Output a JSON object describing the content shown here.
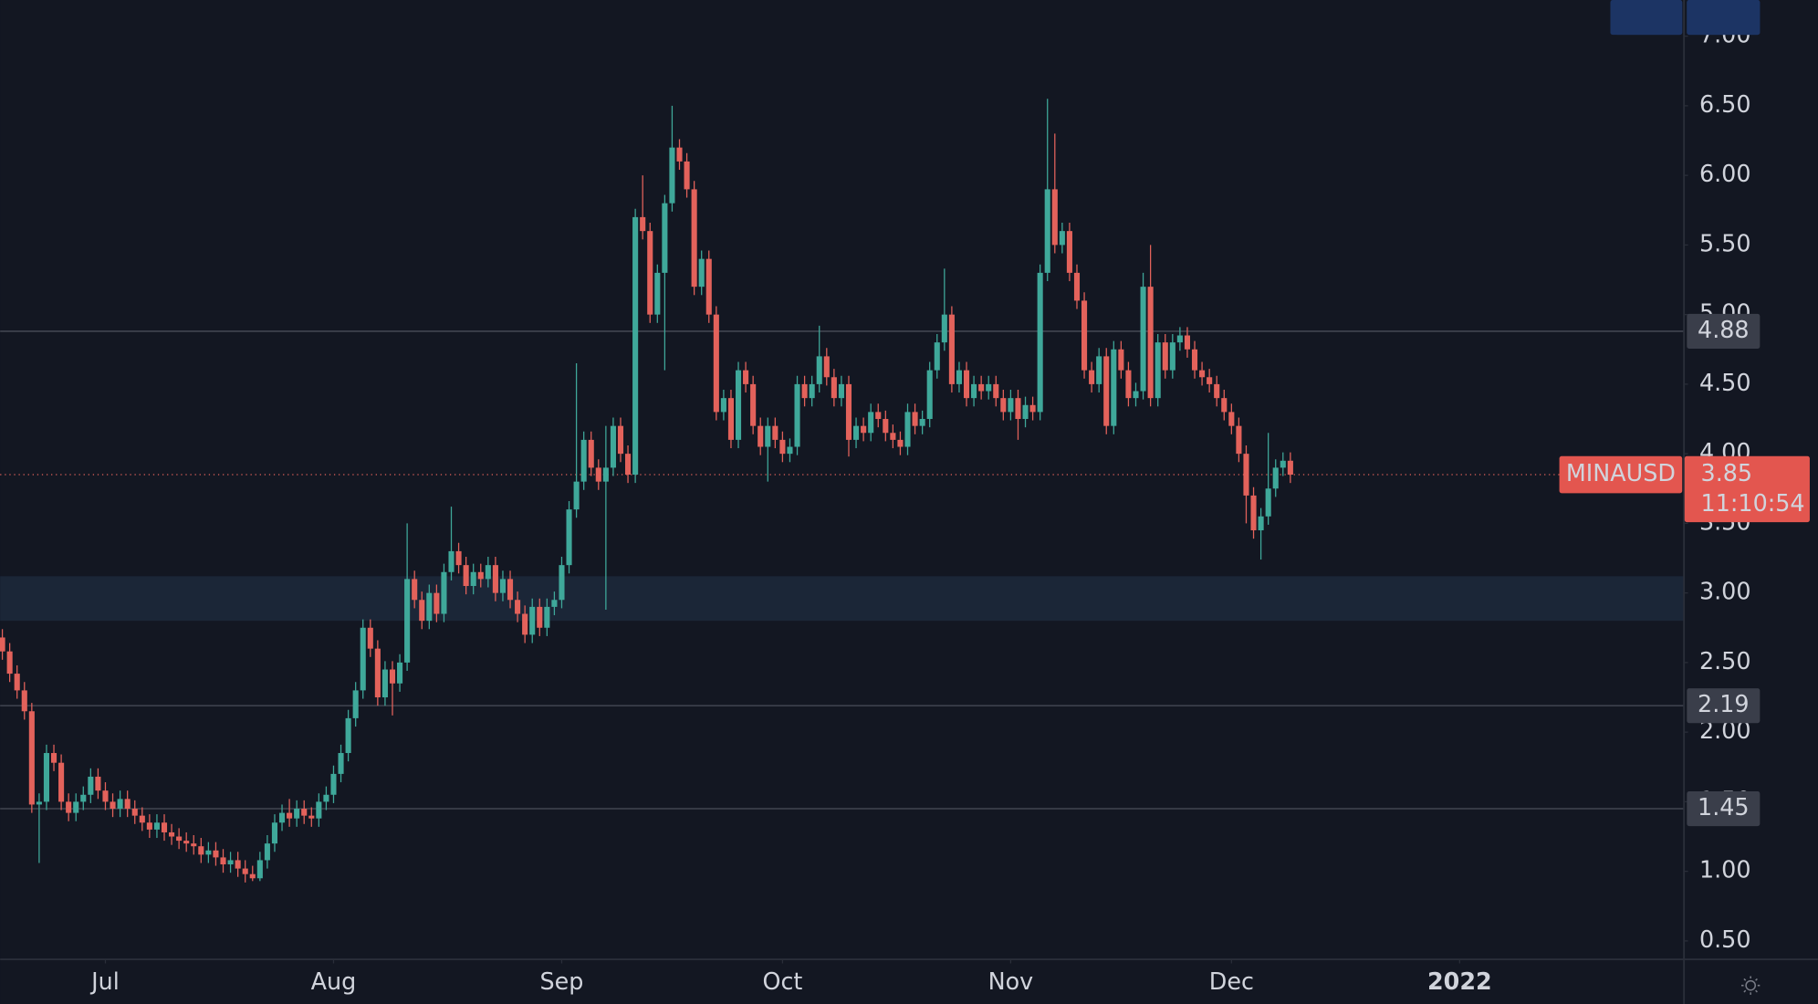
{
  "chart_data": {
    "type": "candlestick",
    "symbol": "MINAUSD",
    "up_color": "#3fa89a",
    "down_color": "#e3625b",
    "xlim": [
      -0.3,
      228.4
    ],
    "xticks": [
      {
        "value": 14,
        "label": "Jul"
      },
      {
        "value": 45,
        "label": "Aug"
      },
      {
        "value": 76,
        "label": "Sep"
      },
      {
        "value": 106,
        "label": "Oct"
      },
      {
        "value": 137,
        "label": "Nov"
      },
      {
        "value": 167,
        "label": "Dec"
      },
      {
        "value": 198,
        "label": "2022"
      }
    ],
    "ylim": [
      0.38,
      7.26
    ],
    "yticks": [
      {
        "value": 0.5,
        "label": "0.50"
      },
      {
        "value": 1,
        "label": "1.00"
      },
      {
        "value": 1.5,
        "label": "1.50"
      },
      {
        "value": 2,
        "label": "2.00"
      },
      {
        "value": 2.5,
        "label": "2.50"
      },
      {
        "value": 3,
        "label": "3.00"
      },
      {
        "value": 3.5,
        "label": "3.50"
      },
      {
        "value": 4,
        "label": "4.00"
      },
      {
        "value": 4.5,
        "label": "4.50"
      },
      {
        "value": 5,
        "label": "5.00"
      },
      {
        "value": 5.5,
        "label": "5.50"
      },
      {
        "value": 6,
        "label": "6.00"
      },
      {
        "value": 6.5,
        "label": "6.50"
      },
      {
        "value": 7,
        "label": "7.00"
      }
    ],
    "zone": [
      2.8,
      3.12
    ],
    "levels": [
      4.88,
      2.19,
      1.45
    ],
    "high": [
      2.74,
      2.64,
      2.48,
      2.36,
      2.21,
      1.56,
      1.91,
      1.91,
      1.84,
      1.56,
      1.56,
      1.61,
      1.74,
      1.74,
      1.64,
      1.56,
      1.58,
      1.58,
      1.51,
      1.46,
      1.41,
      1.41,
      1.41,
      1.34,
      1.31,
      1.28,
      1.26,
      1.24,
      1.21,
      1.21,
      1.16,
      1.14,
      1.14,
      1.08,
      1.04,
      1.14,
      1.26,
      1.41,
      1.48,
      1.52,
      1.51,
      1.51,
      1.46,
      1.56,
      1.61,
      1.76,
      1.91,
      2.16,
      2.36,
      2.81,
      2.81,
      2.66,
      2.51,
      2.51,
      2.56,
      3.5,
      3.16,
      3.01,
      3.06,
      3.06,
      3.21,
      3.62,
      3.36,
      3.26,
      3.21,
      3.21,
      3.26,
      3.26,
      3.16,
      3.16,
      3.01,
      2.91,
      2.96,
      2.96,
      2.96,
      3.01,
      3.26,
      3.66,
      4.65,
      4.16,
      4.16,
      3.96,
      4.2,
      4.26,
      4.26,
      4.06,
      5.76,
      6.0,
      5.66,
      5.36,
      5.86,
      6.5,
      6.26,
      6.16,
      5.96,
      5.46,
      5.46,
      5.06,
      4.46,
      4.46,
      4.66,
      4.66,
      4.56,
      4.26,
      4.26,
      4.26,
      4.16,
      4.11,
      4.56,
      4.56,
      4.56,
      4.92,
      4.76,
      4.61,
      4.56,
      4.56,
      4.26,
      4.26,
      4.36,
      4.36,
      4.31,
      4.21,
      4.16,
      4.36,
      4.36,
      4.31,
      4.66,
      4.86,
      5.33,
      5.06,
      4.66,
      4.66,
      4.56,
      4.56,
      4.56,
      4.56,
      4.46,
      4.46,
      4.46,
      4.41,
      4.41,
      5.36,
      6.55,
      6.3,
      5.66,
      5.66,
      5.36,
      5.16,
      4.66,
      4.76,
      4.76,
      4.81,
      4.81,
      4.66,
      4.51,
      5.3,
      5.5,
      4.86,
      4.86,
      4.86,
      4.91,
      4.91,
      4.81,
      4.66,
      4.61,
      4.56,
      4.46,
      4.36,
      4.26,
      4.06,
      3.76,
      3.61,
      4.15,
      3.96,
      4.01,
      4.01
    ],
    "low": [
      2.52,
      2.36,
      2.24,
      2.09,
      1.42,
      1.06,
      1.44,
      1.72,
      1.44,
      1.36,
      1.36,
      1.44,
      1.49,
      1.52,
      1.44,
      1.39,
      1.39,
      1.39,
      1.34,
      1.29,
      1.24,
      1.24,
      1.22,
      1.19,
      1.16,
      1.14,
      1.12,
      1.06,
      1.06,
      1.04,
      0.99,
      0.99,
      0.96,
      0.92,
      0.93,
      0.93,
      1.02,
      1.14,
      1.29,
      1.32,
      1.32,
      1.34,
      1.32,
      1.32,
      1.44,
      1.49,
      1.64,
      1.79,
      2.04,
      2.24,
      2.54,
      2.19,
      2.19,
      2.12,
      2.29,
      2.44,
      2.89,
      2.74,
      2.74,
      2.79,
      2.79,
      3.09,
      3.14,
      2.99,
      2.99,
      3.04,
      3.04,
      2.94,
      2.94,
      2.89,
      2.79,
      2.64,
      2.64,
      2.69,
      2.69,
      2.84,
      2.89,
      3.14,
      3.54,
      3.74,
      3.84,
      3.74,
      2.88,
      3.84,
      3.94,
      3.79,
      3.79,
      5.54,
      4.94,
      4.94,
      4.6,
      5.74,
      6.04,
      5.84,
      5.14,
      5.14,
      4.94,
      4.24,
      4.24,
      4.04,
      4.04,
      4.44,
      4.14,
      3.99,
      3.8,
      4.04,
      3.94,
      3.94,
      3.99,
      4.34,
      4.34,
      4.44,
      4.49,
      4.34,
      4.34,
      3.98,
      4.04,
      4.09,
      4.09,
      4.19,
      4.09,
      4.04,
      3.99,
      3.99,
      4.14,
      4.14,
      4.19,
      4.54,
      4.74,
      4.44,
      4.44,
      4.34,
      4.34,
      4.39,
      4.39,
      4.34,
      4.24,
      4.24,
      4.1,
      4.19,
      4.24,
      4.24,
      5.24,
      5.44,
      5.44,
      5.24,
      5.04,
      4.54,
      4.44,
      4.44,
      4.14,
      4.14,
      4.54,
      4.34,
      4.34,
      4.39,
      4.34,
      4.34,
      4.54,
      4.54,
      4.74,
      4.69,
      4.54,
      4.49,
      4.44,
      4.34,
      4.24,
      4.14,
      3.94,
      3.5,
      3.39,
      3.24,
      3.49,
      3.69,
      3.84,
      3.79
    ],
    "last": {
      "value": 3.85,
      "countdown": "11:10:54"
    },
    "open": [
      2.68,
      2.58,
      2.42,
      2.3,
      2.15,
      1.48,
      1.5,
      1.85,
      1.78,
      1.5,
      1.42,
      1.5,
      1.55,
      1.68,
      1.58,
      1.5,
      1.45,
      1.52,
      1.45,
      1.4,
      1.35,
      1.3,
      1.35,
      1.28,
      1.25,
      1.22,
      1.2,
      1.18,
      1.12,
      1.15,
      1.1,
      1.05,
      1.08,
      1.02,
      0.98,
      0.95,
      1.08,
      1.2,
      1.35,
      1.42,
      1.38,
      1.45,
      1.4,
      1.38,
      1.5,
      1.55,
      1.7,
      1.85,
      2.1,
      2.3,
      2.75,
      2.6,
      2.25,
      2.45,
      2.35,
      2.5,
      3.1,
      2.95,
      2.8,
      3.0,
      2.85,
      3.15,
      3.3,
      3.2,
      3.05,
      3.15,
      3.1,
      3.2,
      3.0,
      3.1,
      2.95,
      2.85,
      2.7,
      2.9,
      2.75,
      2.9,
      2.95,
      3.2,
      3.6,
      3.8,
      4.1,
      3.9,
      3.8,
      3.9,
      4.2,
      4.0,
      3.85,
      5.7,
      5.6,
      5.0,
      5.3,
      5.8,
      6.2,
      6.1,
      5.9,
      5.2,
      5.4,
      5.0,
      4.3,
      4.4,
      4.1,
      4.6,
      4.5,
      4.2,
      4.05,
      4.2,
      4.1,
      4.0,
      4.05,
      4.5,
      4.4,
      4.5,
      4.7,
      4.55,
      4.4,
      4.5,
      4.1,
      4.2,
      4.15,
      4.3,
      4.25,
      4.15,
      4.1,
      4.05,
      4.3,
      4.2,
      4.25,
      4.6,
      4.8,
      5.0,
      4.5,
      4.6,
      4.4,
      4.5,
      4.45,
      4.5,
      4.4,
      4.3,
      4.4,
      4.25,
      4.35,
      4.3,
      5.3,
      5.9,
      5.5,
      5.6,
      5.3,
      5.1,
      4.6,
      4.5,
      4.7,
      4.2,
      4.75,
      4.6,
      4.4,
      4.45,
      5.2,
      4.4,
      4.8,
      4.6,
      4.8,
      4.85,
      4.75,
      4.6,
      4.55,
      4.5,
      4.4,
      4.3,
      4.2,
      4.0,
      3.7,
      3.45,
      3.55,
      3.75,
      3.9,
      3.95
    ],
    "close": [
      2.58,
      2.42,
      2.3,
      2.15,
      1.48,
      1.5,
      1.85,
      1.78,
      1.5,
      1.42,
      1.5,
      1.55,
      1.68,
      1.58,
      1.5,
      1.45,
      1.52,
      1.45,
      1.4,
      1.35,
      1.3,
      1.35,
      1.28,
      1.25,
      1.22,
      1.2,
      1.18,
      1.12,
      1.15,
      1.1,
      1.05,
      1.08,
      1.02,
      0.98,
      0.95,
      1.08,
      1.2,
      1.35,
      1.42,
      1.38,
      1.45,
      1.4,
      1.38,
      1.5,
      1.55,
      1.7,
      1.85,
      2.1,
      2.3,
      2.75,
      2.6,
      2.25,
      2.45,
      2.35,
      2.5,
      3.1,
      2.95,
      2.8,
      3.0,
      2.85,
      3.15,
      3.3,
      3.2,
      3.05,
      3.15,
      3.1,
      3.2,
      3.0,
      3.1,
      2.95,
      2.85,
      2.7,
      2.9,
      2.75,
      2.9,
      2.95,
      3.2,
      3.6,
      3.8,
      4.1,
      3.9,
      3.8,
      3.9,
      4.2,
      4.0,
      3.85,
      5.7,
      5.6,
      5.0,
      5.3,
      5.8,
      6.2,
      6.1,
      5.9,
      5.2,
      5.4,
      5.0,
      4.3,
      4.4,
      4.1,
      4.6,
      4.5,
      4.2,
      4.05,
      4.2,
      4.1,
      4.0,
      4.05,
      4.5,
      4.4,
      4.5,
      4.7,
      4.55,
      4.4,
      4.5,
      4.1,
      4.2,
      4.15,
      4.3,
      4.25,
      4.15,
      4.1,
      4.05,
      4.3,
      4.2,
      4.25,
      4.6,
      4.8,
      5.0,
      4.5,
      4.6,
      4.4,
      4.5,
      4.45,
      4.5,
      4.4,
      4.3,
      4.4,
      4.25,
      4.35,
      4.3,
      5.3,
      5.9,
      5.5,
      5.6,
      5.3,
      5.1,
      4.6,
      4.5,
      4.7,
      4.2,
      4.75,
      4.6,
      4.4,
      4.45,
      5.2,
      4.4,
      4.8,
      4.6,
      4.8,
      4.85,
      4.75,
      4.6,
      4.55,
      4.5,
      4.4,
      4.3,
      4.2,
      4.0,
      3.7,
      3.45,
      3.55,
      3.75,
      3.9,
      3.95,
      3.85
    ]
  }
}
